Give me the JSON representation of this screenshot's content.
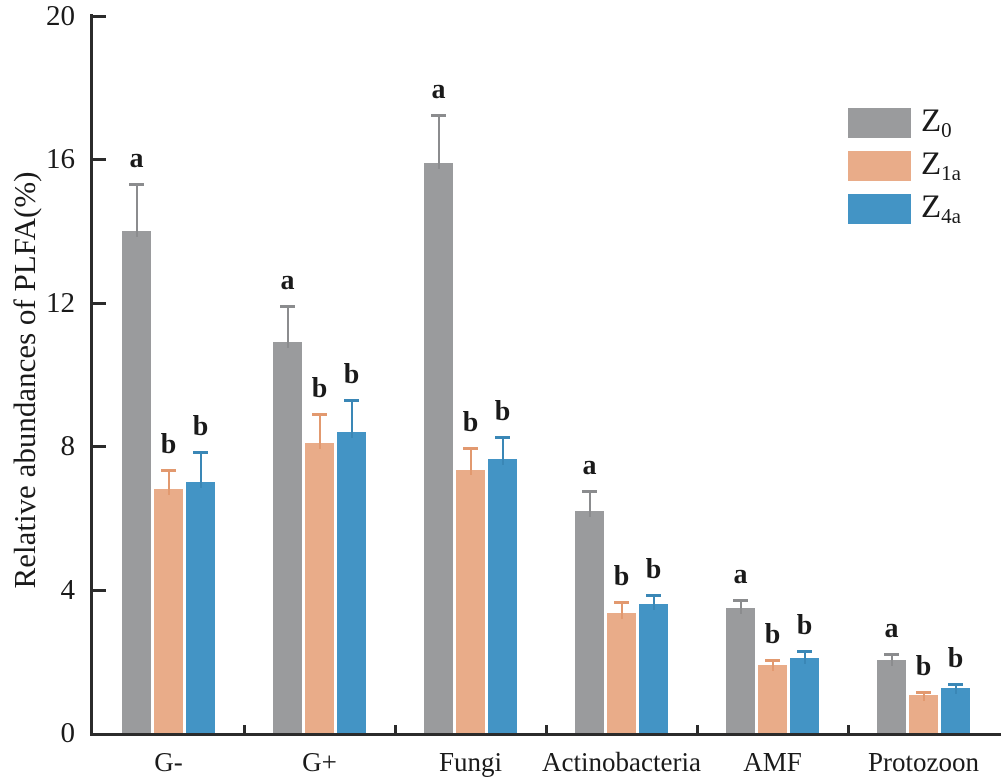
{
  "chart_data": {
    "type": "bar",
    "title": "",
    "xlabel": "",
    "ylabel": "Relative abundances of PLFA(%)",
    "ylim": [
      0,
      20
    ],
    "yticks": [
      0,
      4,
      8,
      12,
      16,
      20
    ],
    "grid": false,
    "legend_position": "top-right",
    "categories": [
      "G-",
      "G+",
      "Fungi",
      "Actinobacteria",
      "AMF",
      "Protozoon"
    ],
    "series": [
      {
        "name": "Z0",
        "label_base": "Z",
        "label_sub": "0",
        "color": "#9a9b9d",
        "error_color": "#8b8c8e",
        "values": [
          14.0,
          10.9,
          15.9,
          6.2,
          3.5,
          2.05
        ],
        "errors": [
          1.3,
          1.0,
          1.35,
          0.55,
          0.2,
          0.15
        ],
        "sig_letters": [
          "a",
          "a",
          "a",
          "a",
          "a",
          "a"
        ]
      },
      {
        "name": "Z1a",
        "label_base": "Z",
        "label_sub": "1a",
        "color": "#e9ac89",
        "error_color": "#e2996f",
        "values": [
          6.8,
          8.1,
          7.35,
          3.35,
          1.9,
          1.05
        ],
        "errors": [
          0.55,
          0.8,
          0.6,
          0.3,
          0.15,
          0.1
        ],
        "sig_letters": [
          "b",
          "b",
          "b",
          "b",
          "b",
          "b"
        ]
      },
      {
        "name": "Z4a",
        "label_base": "Z",
        "label_sub": "4a",
        "color": "#4394c5",
        "error_color": "#3a87b6",
        "values": [
          7.0,
          8.4,
          7.65,
          3.6,
          2.1,
          1.25
        ],
        "errors": [
          0.85,
          0.9,
          0.6,
          0.25,
          0.2,
          0.12
        ],
        "sig_letters": [
          "b",
          "b",
          "b",
          "b",
          "b",
          "b"
        ]
      }
    ],
    "axis_color": "#2b2b2b",
    "text_color": "#1a1a1a"
  }
}
